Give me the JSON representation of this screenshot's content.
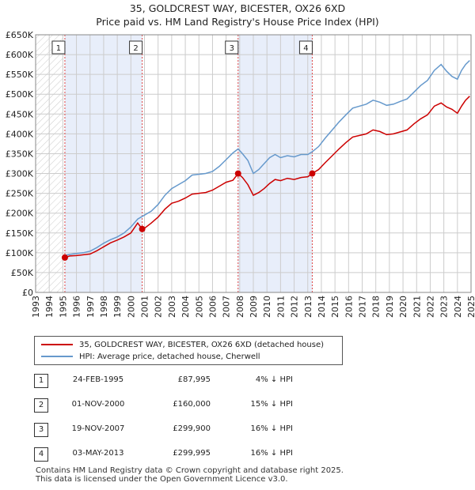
{
  "title_line1": "35, GOLDCREST WAY, BICESTER, OX26 6XD",
  "title_line2": "Price paid vs. HM Land Registry's House Price Index (HPI)",
  "colors": {
    "price_line": "#cc0000",
    "hpi_line": "#6699cc",
    "shade": "#e8eefa",
    "marker_border": "#cc0000",
    "grid": "#cccccc"
  },
  "legend": {
    "price_label": "35, GOLDCREST WAY, BICESTER, OX26 6XD (detached house)",
    "hpi_label": "HPI: Average price, detached house, Cherwell"
  },
  "transactions": [
    {
      "num": "1",
      "date": "24-FEB-1995",
      "price": "£87,995",
      "hpi": "4% ↓ HPI"
    },
    {
      "num": "2",
      "date": "01-NOV-2000",
      "price": "£160,000",
      "hpi": "15% ↓ HPI"
    },
    {
      "num": "3",
      "date": "19-NOV-2007",
      "price": "£299,900",
      "hpi": "16% ↓ HPI"
    },
    {
      "num": "4",
      "date": "03-MAY-2013",
      "price": "£299,995",
      "hpi": "16% ↓ HPI"
    }
  ],
  "footer_line1": "Contains HM Land Registry data © Crown copyright and database right 2025.",
  "footer_line2": "This data is licensed under the Open Government Licence v3.0.",
  "chart_data": {
    "type": "line",
    "title": "Price paid vs. HM Land Registry's House Price Index (HPI)",
    "xlim": [
      1993,
      2025
    ],
    "ylim": [
      0,
      650000
    ],
    "x_ticks": [
      "1993",
      "1994",
      "1995",
      "1996",
      "1997",
      "1998",
      "1999",
      "2000",
      "2001",
      "2002",
      "2003",
      "2004",
      "2005",
      "2006",
      "2007",
      "2008",
      "2009",
      "2010",
      "2011",
      "2012",
      "2013",
      "2014",
      "2015",
      "2016",
      "2017",
      "2018",
      "2019",
      "2020",
      "2021",
      "2022",
      "2023",
      "2024",
      "2025"
    ],
    "y_ticks": [
      {
        "v": 0,
        "label": "£0"
      },
      {
        "v": 50000,
        "label": "£50K"
      },
      {
        "v": 100000,
        "label": "£100K"
      },
      {
        "v": 150000,
        "label": "£150K"
      },
      {
        "v": 200000,
        "label": "£200K"
      },
      {
        "v": 250000,
        "label": "£250K"
      },
      {
        "v": 300000,
        "label": "£300K"
      },
      {
        "v": 350000,
        "label": "£350K"
      },
      {
        "v": 400000,
        "label": "£400K"
      },
      {
        "v": 450000,
        "label": "£450K"
      },
      {
        "v": 500000,
        "label": "£500K"
      },
      {
        "v": 550000,
        "label": "£550K"
      },
      {
        "v": 600000,
        "label": "£600K"
      },
      {
        "v": 650000,
        "label": "£650K"
      }
    ],
    "shaded_ranges": [
      [
        1995.15,
        2000.83
      ],
      [
        2007.88,
        2013.33
      ]
    ],
    "sales": [
      {
        "label": "1",
        "x": 1995.15,
        "y": 87995
      },
      {
        "label": "2",
        "x": 2000.83,
        "y": 160000
      },
      {
        "label": "3",
        "x": 2007.88,
        "y": 299900
      },
      {
        "label": "4",
        "x": 2013.33,
        "y": 299995
      }
    ],
    "series": [
      {
        "name": "35, GOLDCREST WAY, BICESTER, OX26 6XD (detached house)",
        "points": [
          [
            1995.15,
            87995
          ],
          [
            1995.5,
            92000
          ],
          [
            1996.0,
            93000
          ],
          [
            1996.5,
            95000
          ],
          [
            1997.0,
            97000
          ],
          [
            1997.5,
            105000
          ],
          [
            1998.0,
            115000
          ],
          [
            1998.5,
            125000
          ],
          [
            1999.0,
            132000
          ],
          [
            1999.5,
            140000
          ],
          [
            2000.0,
            150000
          ],
          [
            2000.5,
            175000
          ],
          [
            2000.83,
            160000
          ],
          [
            2001.0,
            162000
          ],
          [
            2001.5,
            175000
          ],
          [
            2002.0,
            190000
          ],
          [
            2002.5,
            210000
          ],
          [
            2003.0,
            225000
          ],
          [
            2003.5,
            230000
          ],
          [
            2004.0,
            238000
          ],
          [
            2004.5,
            248000
          ],
          [
            2005.0,
            250000
          ],
          [
            2005.5,
            252000
          ],
          [
            2006.0,
            258000
          ],
          [
            2006.5,
            268000
          ],
          [
            2007.0,
            278000
          ],
          [
            2007.5,
            283000
          ],
          [
            2007.88,
            299900
          ],
          [
            2008.2,
            290000
          ],
          [
            2008.6,
            272000
          ],
          [
            2009.0,
            245000
          ],
          [
            2009.4,
            252000
          ],
          [
            2009.8,
            262000
          ],
          [
            2010.2,
            275000
          ],
          [
            2010.6,
            285000
          ],
          [
            2011.0,
            282000
          ],
          [
            2011.5,
            288000
          ],
          [
            2012.0,
            285000
          ],
          [
            2012.5,
            290000
          ],
          [
            2013.0,
            292000
          ],
          [
            2013.33,
            299995
          ],
          [
            2013.8,
            310000
          ],
          [
            2014.3,
            328000
          ],
          [
            2014.8,
            345000
          ],
          [
            2015.3,
            362000
          ],
          [
            2015.8,
            378000
          ],
          [
            2016.3,
            392000
          ],
          [
            2016.8,
            396000
          ],
          [
            2017.3,
            400000
          ],
          [
            2017.8,
            410000
          ],
          [
            2018.3,
            406000
          ],
          [
            2018.8,
            398000
          ],
          [
            2019.3,
            400000
          ],
          [
            2019.8,
            405000
          ],
          [
            2020.3,
            410000
          ],
          [
            2020.8,
            425000
          ],
          [
            2021.3,
            438000
          ],
          [
            2021.8,
            448000
          ],
          [
            2022.3,
            470000
          ],
          [
            2022.8,
            478000
          ],
          [
            2023.2,
            468000
          ],
          [
            2023.6,
            462000
          ],
          [
            2024.0,
            452000
          ],
          [
            2024.3,
            470000
          ],
          [
            2024.6,
            485000
          ],
          [
            2024.9,
            495000
          ]
        ]
      },
      {
        "name": "HPI: Average price, detached house, Cherwell",
        "points": [
          [
            1995.0,
            92000
          ],
          [
            1995.5,
            96000
          ],
          [
            1996.0,
            98000
          ],
          [
            1996.5,
            100000
          ],
          [
            1997.0,
            104000
          ],
          [
            1997.5,
            113000
          ],
          [
            1998.0,
            124000
          ],
          [
            1998.5,
            133000
          ],
          [
            1999.0,
            140000
          ],
          [
            1999.5,
            150000
          ],
          [
            2000.0,
            165000
          ],
          [
            2000.5,
            185000
          ],
          [
            2001.0,
            195000
          ],
          [
            2001.5,
            205000
          ],
          [
            2002.0,
            222000
          ],
          [
            2002.5,
            245000
          ],
          [
            2003.0,
            262000
          ],
          [
            2003.5,
            272000
          ],
          [
            2004.0,
            282000
          ],
          [
            2004.5,
            296000
          ],
          [
            2005.0,
            298000
          ],
          [
            2005.5,
            300000
          ],
          [
            2006.0,
            305000
          ],
          [
            2006.5,
            318000
          ],
          [
            2007.0,
            335000
          ],
          [
            2007.5,
            352000
          ],
          [
            2007.88,
            362000
          ],
          [
            2008.2,
            350000
          ],
          [
            2008.6,
            333000
          ],
          [
            2009.0,
            300000
          ],
          [
            2009.4,
            310000
          ],
          [
            2009.8,
            325000
          ],
          [
            2010.2,
            340000
          ],
          [
            2010.6,
            348000
          ],
          [
            2011.0,
            340000
          ],
          [
            2011.5,
            345000
          ],
          [
            2012.0,
            342000
          ],
          [
            2012.5,
            348000
          ],
          [
            2013.0,
            348000
          ],
          [
            2013.33,
            355000
          ],
          [
            2013.8,
            368000
          ],
          [
            2014.3,
            390000
          ],
          [
            2014.8,
            410000
          ],
          [
            2015.3,
            430000
          ],
          [
            2015.8,
            448000
          ],
          [
            2016.3,
            465000
          ],
          [
            2016.8,
            470000
          ],
          [
            2017.3,
            475000
          ],
          [
            2017.8,
            485000
          ],
          [
            2018.3,
            480000
          ],
          [
            2018.8,
            472000
          ],
          [
            2019.3,
            475000
          ],
          [
            2019.8,
            482000
          ],
          [
            2020.3,
            488000
          ],
          [
            2020.8,
            505000
          ],
          [
            2021.3,
            522000
          ],
          [
            2021.8,
            535000
          ],
          [
            2022.3,
            560000
          ],
          [
            2022.8,
            575000
          ],
          [
            2023.2,
            558000
          ],
          [
            2023.6,
            545000
          ],
          [
            2024.0,
            538000
          ],
          [
            2024.3,
            560000
          ],
          [
            2024.6,
            575000
          ],
          [
            2024.9,
            585000
          ]
        ]
      }
    ]
  }
}
